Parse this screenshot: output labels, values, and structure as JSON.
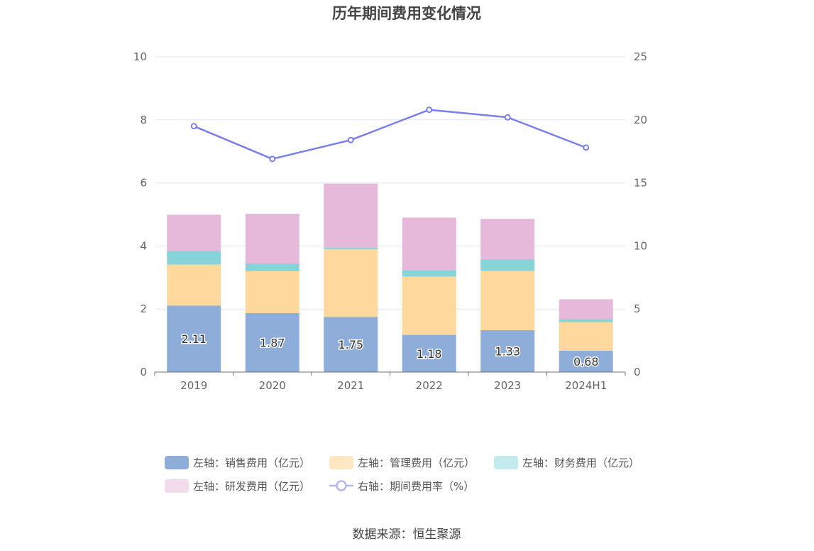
{
  "chart_data": {
    "type": "bar",
    "title": "历年期间费用变化情况",
    "categories": [
      "2019",
      "2020",
      "2021",
      "2022",
      "2023",
      "2024H1"
    ],
    "stacked": true,
    "y_left": {
      "ylim": [
        0,
        10
      ],
      "ticks": [
        "0",
        "2",
        "4",
        "6",
        "8",
        "10"
      ]
    },
    "y_right": {
      "ylim": [
        0,
        25
      ],
      "ticks": [
        "0",
        "5",
        "10",
        "15",
        "20",
        "25"
      ]
    },
    "grid": true,
    "series": [
      {
        "name": "左轴：销售费用（亿元）",
        "type": "bar",
        "axis": "left",
        "color": "#8fadd9",
        "values": [
          2.11,
          1.87,
          1.75,
          1.18,
          1.33,
          0.68
        ],
        "labels": [
          "2.11",
          "1.87",
          "1.75",
          "1.18",
          "1.33",
          "0.68"
        ]
      },
      {
        "name": "左轴：管理费用（亿元）",
        "type": "bar",
        "axis": "left",
        "color": "#fed89c",
        "values": [
          1.3,
          1.33,
          2.15,
          1.85,
          1.88,
          0.9
        ]
      },
      {
        "name": "左轴：财务费用（亿元）",
        "type": "bar",
        "axis": "left",
        "color": "#86d4d8",
        "values": [
          0.43,
          0.25,
          0.05,
          0.2,
          0.36,
          0.1
        ]
      },
      {
        "name": "左轴：研发费用（亿元）",
        "type": "bar",
        "axis": "left",
        "color": "#e6b9db",
        "values": [
          1.15,
          1.57,
          2.03,
          1.67,
          1.29,
          0.63
        ]
      },
      {
        "name": "右轴：期间费用率（%）",
        "type": "line",
        "axis": "right",
        "color": "#7b7fe8",
        "values": [
          19.5,
          16.9,
          18.4,
          20.8,
          20.2,
          17.8
        ]
      }
    ],
    "legend_position": "bottom"
  },
  "source": "数据来源：恒生聚源"
}
